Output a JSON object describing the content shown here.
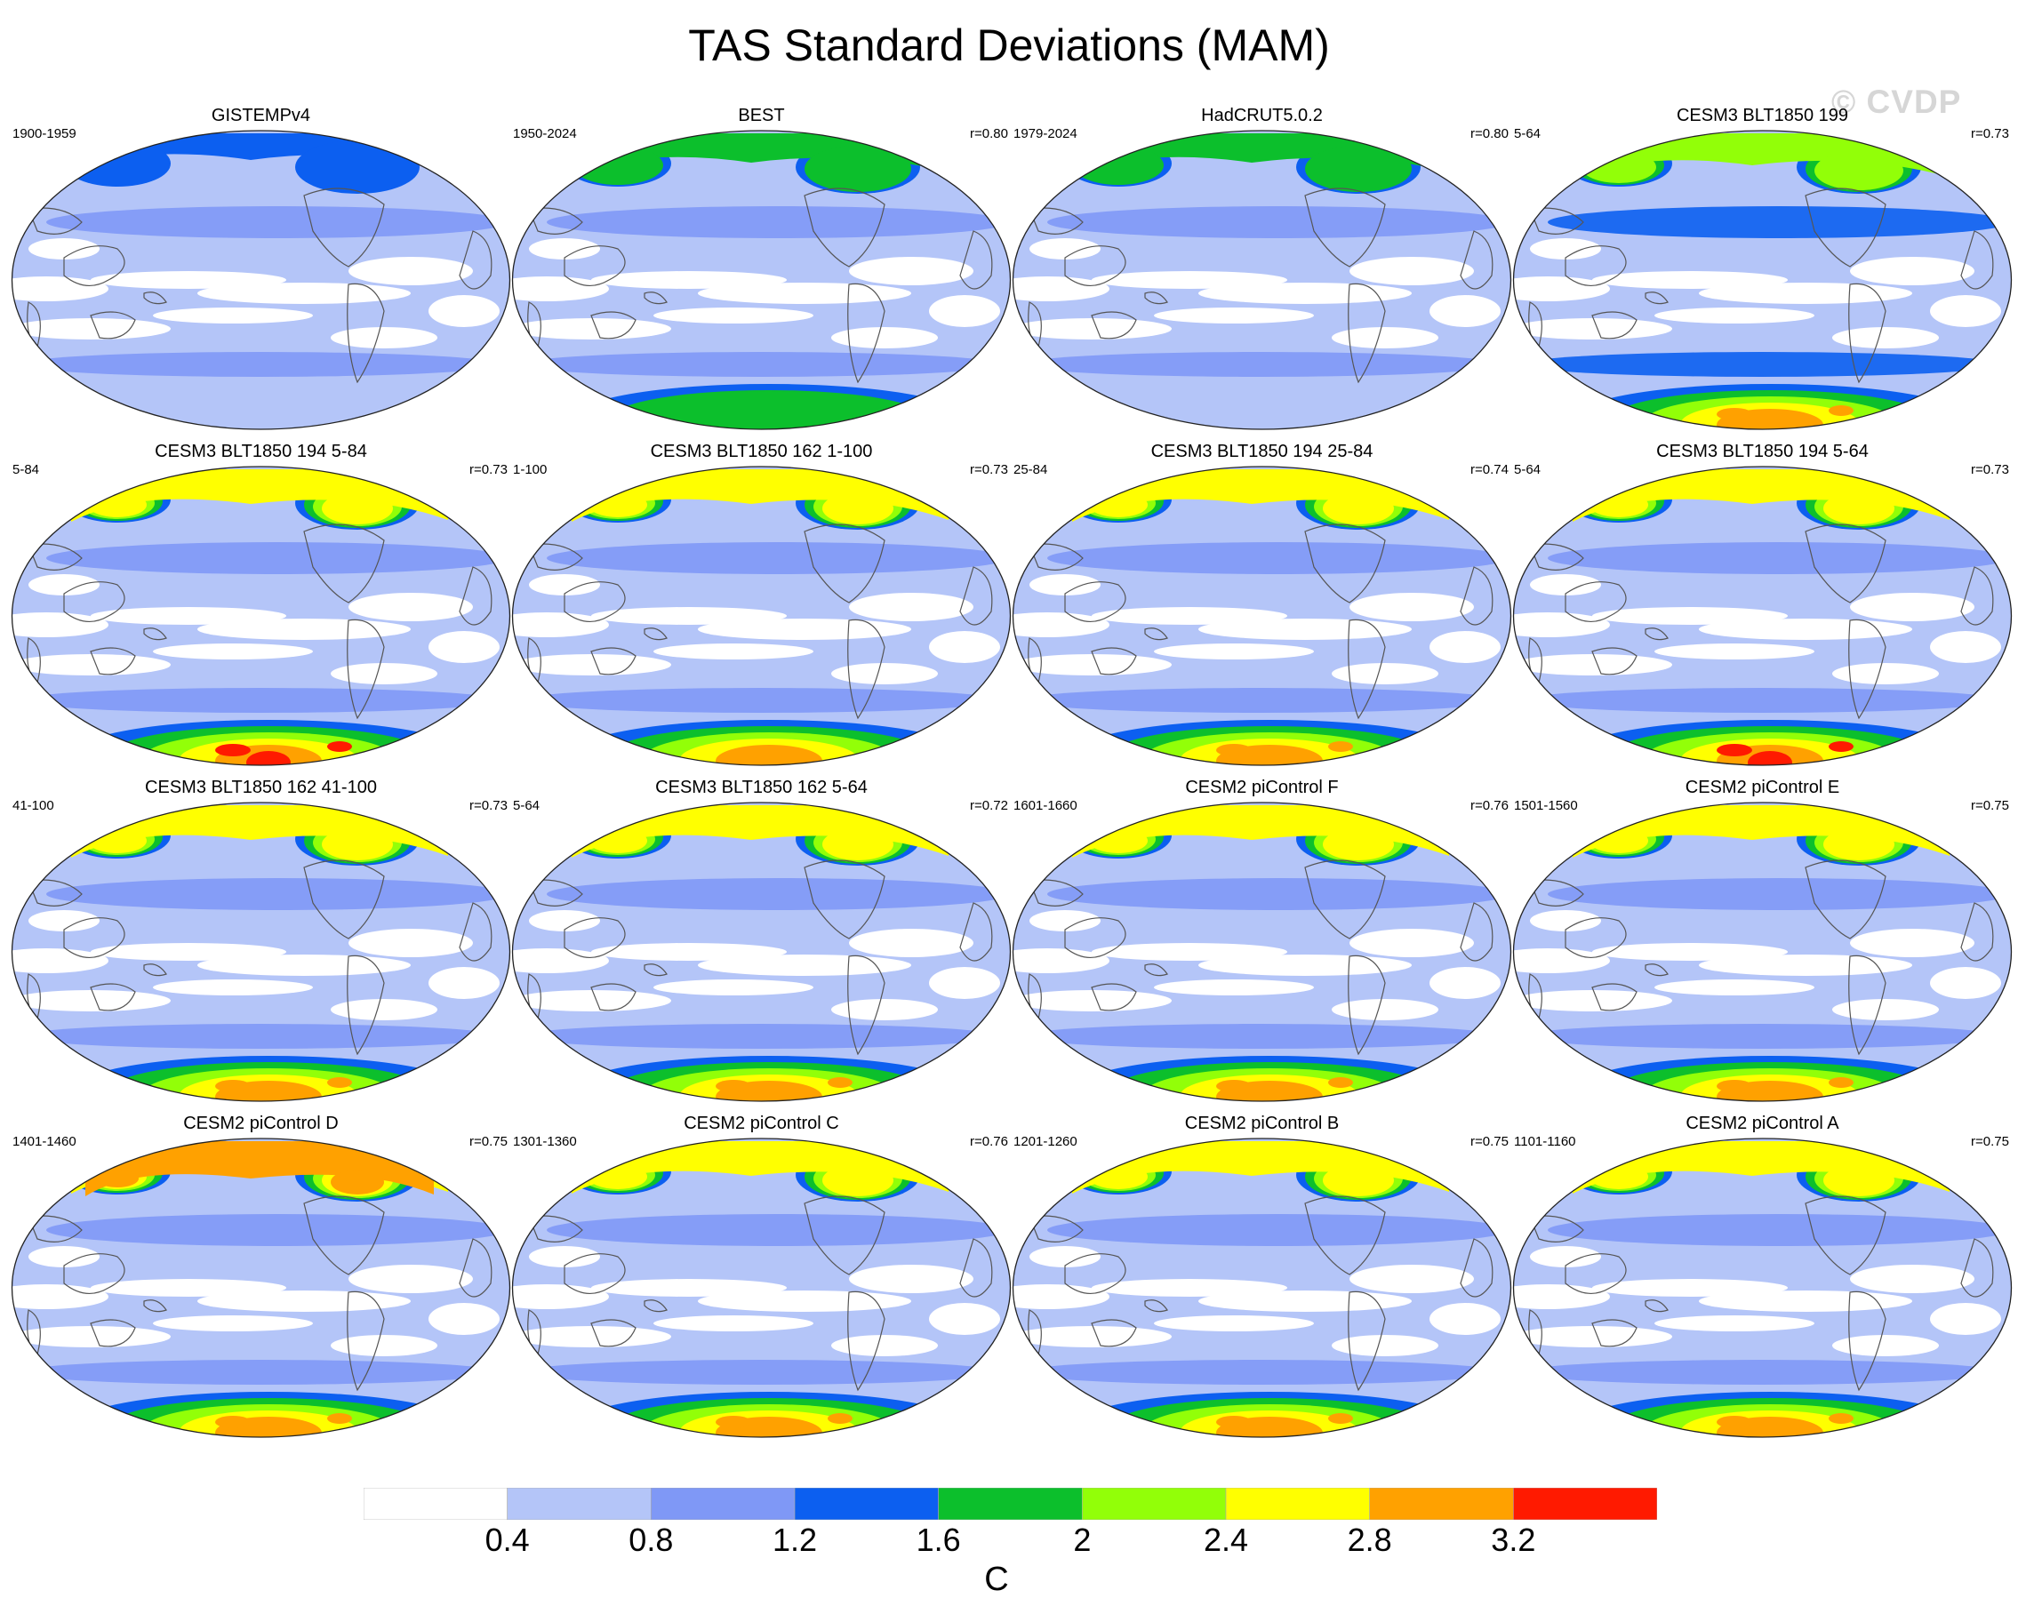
{
  "title": "TAS Standard Deviations (MAM)",
  "watermark": "© CVDP",
  "panels": [
    {
      "title": "GISTEMPv4",
      "period": "1900-1959",
      "corr": "",
      "arctic": 1.4,
      "antarctic": 1.0,
      "tropics": 0.4
    },
    {
      "title": "BEST",
      "period": "1950-2024",
      "corr": "r=0.80",
      "arctic": 1.8,
      "antarctic": 1.8,
      "tropics": 0.4
    },
    {
      "title": "HadCRUT5.0.2",
      "period": "1979-2024",
      "corr": "r=0.80",
      "arctic": 1.9,
      "antarctic": 0.9,
      "tropics": 0.4
    },
    {
      "title": "CESM3 BLT1850 199",
      "period": "5-64",
      "corr": "r=0.73",
      "arctic": 2.3,
      "antarctic": 3.0,
      "tropics": 0.7
    },
    {
      "title": "CESM3 BLT1850 194 5-84",
      "period": "5-84",
      "corr": "r=0.73",
      "arctic": 2.6,
      "antarctic": 3.2,
      "tropics": 0.6
    },
    {
      "title": "CESM3 BLT1850 162 1-100",
      "period": "1-100",
      "corr": "r=0.73",
      "arctic": 2.4,
      "antarctic": 2.8,
      "tropics": 0.6
    },
    {
      "title": "CESM3 BLT1850 194 25-84",
      "period": "25-84",
      "corr": "r=0.74",
      "arctic": 2.6,
      "antarctic": 3.1,
      "tropics": 0.6
    },
    {
      "title": "CESM3 BLT1850 194 5-64",
      "period": "5-64",
      "corr": "r=0.73",
      "arctic": 2.6,
      "antarctic": 3.2,
      "tropics": 0.6
    },
    {
      "title": "CESM3 BLT1850 162 41-100",
      "period": "41-100",
      "corr": "r=0.73",
      "arctic": 2.4,
      "antarctic": 2.9,
      "tropics": 0.6
    },
    {
      "title": "CESM3 BLT1850 162 5-64",
      "period": "5-64",
      "corr": "r=0.72",
      "arctic": 2.4,
      "antarctic": 3.1,
      "tropics": 0.6
    },
    {
      "title": "CESM2 piControl F",
      "period": "1601-1660",
      "corr": "r=0.76",
      "arctic": 2.4,
      "antarctic": 2.9,
      "tropics": 0.6
    },
    {
      "title": "CESM2 piControl E",
      "period": "1501-1560",
      "corr": "r=0.75",
      "arctic": 2.4,
      "antarctic": 2.9,
      "tropics": 0.6
    },
    {
      "title": "CESM2 piControl D",
      "period": "1401-1460",
      "corr": "r=0.75",
      "arctic": 2.8,
      "antarctic": 2.9,
      "tropics": 0.5
    },
    {
      "title": "CESM2 piControl C",
      "period": "1301-1360",
      "corr": "r=0.76",
      "arctic": 2.5,
      "antarctic": 2.9,
      "tropics": 0.5
    },
    {
      "title": "CESM2 piControl B",
      "period": "1201-1260",
      "corr": "r=0.75",
      "arctic": 2.5,
      "antarctic": 3.1,
      "tropics": 0.5
    },
    {
      "title": "CESM2 piControl A",
      "period": "1101-1160",
      "corr": "r=0.75",
      "arctic": 2.5,
      "antarctic": 3.1,
      "tropics": 0.5
    }
  ],
  "colorbar": {
    "levels": [
      "0.4",
      "0.8",
      "1.2",
      "1.6",
      "2",
      "2.4",
      "2.8",
      "3.2"
    ],
    "colors": [
      "#ffffff",
      "#b4c5f8",
      "#7f98f6",
      "#0c5ff0",
      "#0cbf2c",
      "#92ff08",
      "#ffff00",
      "#ffa100",
      "#ff1a00"
    ],
    "units": "C"
  }
}
